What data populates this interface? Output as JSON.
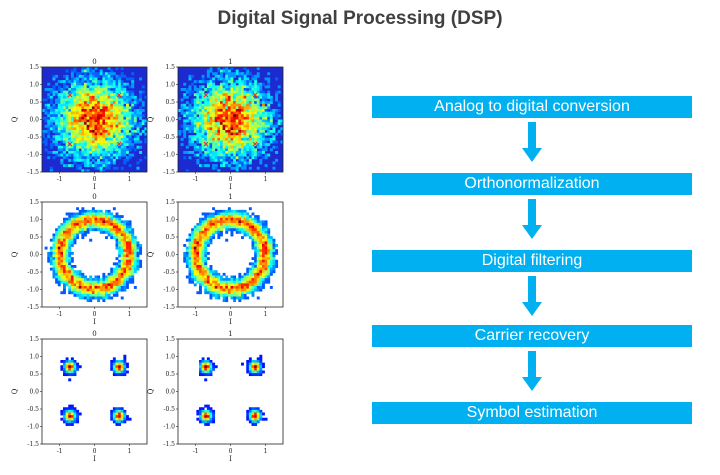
{
  "title": "Digital Signal Processing (DSP)",
  "colors": {
    "stage_fill": "#00b0f0",
    "stage_text": "#ffffff",
    "title_text": "#404040"
  },
  "stages": [
    {
      "label": "Analog to digital conversion"
    },
    {
      "label": "Orthonormalization"
    },
    {
      "label": "Digital filtering"
    },
    {
      "label": "Carrier recovery"
    },
    {
      "label": "Symbol estimation"
    }
  ],
  "plots": {
    "column_titles": [
      "0",
      "1"
    ],
    "xlabel": "I",
    "ylabel": "Q",
    "xticks": [
      "-1",
      "0",
      "1"
    ],
    "yticks": [
      "1.5",
      "1.0",
      "0.5",
      "0.0",
      "-0.5",
      "-1.0",
      "-1.5"
    ],
    "axis_range": [
      -1.5,
      1.5
    ],
    "constellation_points": [
      [
        -0.7,
        0.7
      ],
      [
        0.7,
        0.7
      ],
      [
        -0.7,
        -0.7
      ],
      [
        0.7,
        -0.7
      ]
    ],
    "rows": [
      {
        "distribution": "gaussian-cloud",
        "sigma": 0.55
      },
      {
        "distribution": "ring",
        "radius": 1.0,
        "width": 0.12
      },
      {
        "distribution": "four-clusters",
        "sigma": 0.07
      }
    ]
  }
}
